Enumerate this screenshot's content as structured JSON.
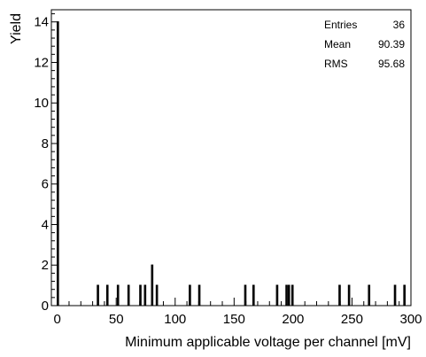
{
  "chart_data": {
    "type": "bar",
    "xlabel": "Minimum applicable voltage per channel [mV]",
    "ylabel": "Yield",
    "xlim": [
      -5,
      300
    ],
    "ylim": [
      0,
      14.6
    ],
    "x_ticks": [
      0,
      50,
      100,
      150,
      200,
      250,
      300
    ],
    "y_ticks": [
      0,
      2,
      4,
      6,
      8,
      10,
      12,
      14
    ],
    "bin_width": 1,
    "bins": [
      {
        "x": 0,
        "y": 14
      },
      {
        "x": 34,
        "y": 1
      },
      {
        "x": 42,
        "y": 1
      },
      {
        "x": 51,
        "y": 1
      },
      {
        "x": 60,
        "y": 1
      },
      {
        "x": 70,
        "y": 1
      },
      {
        "x": 74,
        "y": 1
      },
      {
        "x": 80,
        "y": 2
      },
      {
        "x": 84,
        "y": 1
      },
      {
        "x": 112,
        "y": 1
      },
      {
        "x": 120,
        "y": 1
      },
      {
        "x": 159,
        "y": 1
      },
      {
        "x": 166,
        "y": 1
      },
      {
        "x": 186,
        "y": 1
      },
      {
        "x": 194,
        "y": 1
      },
      {
        "x": 196,
        "y": 1
      },
      {
        "x": 199,
        "y": 1
      },
      {
        "x": 239,
        "y": 1
      },
      {
        "x": 247,
        "y": 1
      },
      {
        "x": 264,
        "y": 1
      },
      {
        "x": 286,
        "y": 1
      },
      {
        "x": 294,
        "y": 1
      }
    ],
    "stats": [
      {
        "label": "Entries",
        "value": "36"
      },
      {
        "label": "Mean",
        "value": "90.39"
      },
      {
        "label": "RMS",
        "value": "95.68"
      }
    ],
    "grid": false,
    "stats_box_placement": "top-right"
  }
}
